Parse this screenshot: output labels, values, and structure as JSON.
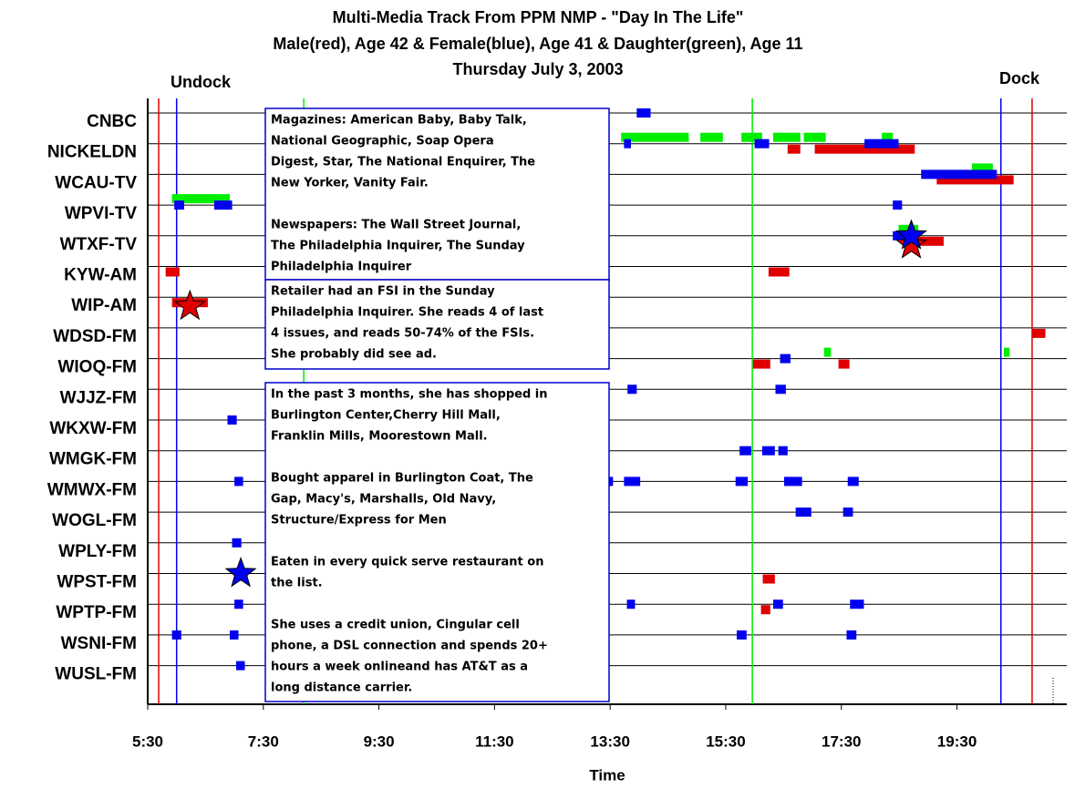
{
  "chart_data": {
    "type": "timeline",
    "title": "Multi-Media Track From PPM NMP - \"Day In The Life\"",
    "subtitle": [
      "Male(red), Age 42 & Female(blue), Age 41 & Daughter(green), Age 11",
      "Thursday July 3, 2003"
    ],
    "xlabel": "Time",
    "categories": [
      "CNBC",
      "NICKELDN",
      "WCAU-TV",
      "WPVI-TV",
      "WTXF-TV",
      "KYW-AM",
      "WIP-AM",
      "WDSD-FM",
      "WIOQ-FM",
      "WJJZ-FM",
      "WKXW-FM",
      "WMGK-FM",
      "WMWX-FM",
      "WOGL-FM",
      "WPLY-FM",
      "WPST-FM",
      "WPTP-FM",
      "WSNI-FM",
      "WUSL-FM"
    ],
    "xlim": [
      5.5,
      21.4
    ],
    "xticks": [
      {
        "value": 5.5,
        "label": "5:30"
      },
      {
        "value": 7.5,
        "label": "7:30"
      },
      {
        "value": 9.5,
        "label": "9:30"
      },
      {
        "value": 11.5,
        "label": "11:30"
      },
      {
        "value": 13.5,
        "label": "13:30"
      },
      {
        "value": 15.5,
        "label": "15:30"
      },
      {
        "value": 17.5,
        "label": "17:30"
      },
      {
        "value": 19.5,
        "label": "19:30"
      }
    ],
    "series": [
      {
        "color": "#e00000",
        "segments": [
          {
            "row": 1,
            "start": 16.57,
            "end": 16.79
          },
          {
            "row": 1,
            "start": 17.04,
            "end": 18.77
          },
          {
            "row": 2,
            "start": 19.15,
            "end": 20.48
          },
          {
            "row": 4,
            "start": 18.68,
            "end": 19.27
          },
          {
            "row": 5,
            "start": 5.81,
            "end": 6.05
          },
          {
            "row": 5,
            "start": 16.24,
            "end": 16.6
          },
          {
            "row": 6,
            "start": 5.92,
            "end": 6.54
          },
          {
            "row": 7,
            "start": 20.8,
            "end": 21.03
          },
          {
            "row": 8,
            "start": 15.97,
            "end": 16.27
          },
          {
            "row": 8,
            "start": 17.45,
            "end": 17.64
          },
          {
            "row": 15,
            "start": 16.14,
            "end": 16.35
          },
          {
            "row": 16,
            "start": 16.11,
            "end": 16.27
          }
        ]
      },
      {
        "color": "#00ee00",
        "segments": [
          {
            "row": 1,
            "start": 13.69,
            "end": 14.86
          },
          {
            "row": 1,
            "start": 15.06,
            "end": 15.45
          },
          {
            "row": 1,
            "start": 15.77,
            "end": 16.13
          },
          {
            "row": 1,
            "start": 16.32,
            "end": 16.79
          },
          {
            "row": 1,
            "start": 16.85,
            "end": 17.23
          },
          {
            "row": 1,
            "start": 18.2,
            "end": 18.39
          },
          {
            "row": 2,
            "start": 19.76,
            "end": 20.12
          },
          {
            "row": 3,
            "start": 5.92,
            "end": 6.92
          },
          {
            "row": 4,
            "start": 18.49,
            "end": 18.83
          },
          {
            "row": 8,
            "start": 17.2,
            "end": 17.32
          },
          {
            "row": 8,
            "start": 20.31,
            "end": 20.41
          }
        ]
      },
      {
        "color": "#0000ee",
        "segments": [
          {
            "row": 0,
            "start": 13.96,
            "end": 14.2
          },
          {
            "row": 1,
            "start": 13.74,
            "end": 13.86
          },
          {
            "row": 1,
            "start": 16.0,
            "end": 16.25
          },
          {
            "row": 1,
            "start": 17.9,
            "end": 18.49
          },
          {
            "row": 2,
            "start": 18.88,
            "end": 20.19
          },
          {
            "row": 3,
            "start": 5.96,
            "end": 6.13
          },
          {
            "row": 3,
            "start": 6.65,
            "end": 6.96
          },
          {
            "row": 3,
            "start": 18.39,
            "end": 18.55
          },
          {
            "row": 4,
            "start": 18.39,
            "end": 18.68
          },
          {
            "row": 8,
            "start": 16.44,
            "end": 16.62
          },
          {
            "row": 9,
            "start": 13.8,
            "end": 13.96
          },
          {
            "row": 9,
            "start": 16.36,
            "end": 16.54
          },
          {
            "row": 10,
            "start": 6.88,
            "end": 7.04
          },
          {
            "row": 11,
            "start": 15.74,
            "end": 15.94
          },
          {
            "row": 11,
            "start": 16.13,
            "end": 16.35
          },
          {
            "row": 11,
            "start": 16.41,
            "end": 16.57
          },
          {
            "row": 12,
            "start": 7.0,
            "end": 7.15
          },
          {
            "row": 12,
            "start": 13.46,
            "end": 13.55
          },
          {
            "row": 12,
            "start": 13.74,
            "end": 14.02
          },
          {
            "row": 12,
            "start": 15.67,
            "end": 15.88
          },
          {
            "row": 12,
            "start": 16.51,
            "end": 16.82
          },
          {
            "row": 12,
            "start": 17.61,
            "end": 17.8
          },
          {
            "row": 13,
            "start": 16.71,
            "end": 16.98
          },
          {
            "row": 13,
            "start": 17.53,
            "end": 17.7
          },
          {
            "row": 14,
            "start": 6.96,
            "end": 7.12
          },
          {
            "row": 16,
            "start": 7.0,
            "end": 7.15
          },
          {
            "row": 16,
            "start": 13.79,
            "end": 13.93
          },
          {
            "row": 16,
            "start": 16.32,
            "end": 16.49
          },
          {
            "row": 16,
            "start": 17.65,
            "end": 17.89
          },
          {
            "row": 17,
            "start": 5.92,
            "end": 6.08
          },
          {
            "row": 17,
            "start": 6.92,
            "end": 7.07
          },
          {
            "row": 17,
            "start": 15.69,
            "end": 15.86
          },
          {
            "row": 17,
            "start": 17.59,
            "end": 17.76
          },
          {
            "row": 18,
            "start": 7.03,
            "end": 7.18
          }
        ]
      }
    ],
    "stars": [
      {
        "row": 6,
        "time": 6.23,
        "color": "#e00000"
      },
      {
        "row": 15,
        "time": 7.11,
        "color": "#0000ee"
      },
      {
        "row": 4,
        "time": 18.71,
        "color": "#e00000"
      },
      {
        "row": 4,
        "time": 18.71,
        "color": "#0000ee"
      }
    ],
    "verticals": [
      {
        "time": 5.69,
        "color": "#e00000"
      },
      {
        "time": 20.8,
        "color": "#e00000"
      },
      {
        "time": 6.0,
        "color": "#0000ee"
      },
      {
        "time": 20.26,
        "color": "#0000ee"
      },
      {
        "time": 8.2,
        "color": "#00ee00"
      },
      {
        "time": 15.96,
        "color": "#00ee00"
      }
    ],
    "undock": "Undock",
    "dock": "Dock",
    "boxes": [
      {
        "paragraphs": [
          [
            "Magazines: American Baby, Baby Talk,",
            "National Geographic, Soap Opera",
            "Digest, Star, The National  Enquirer, The",
            "New Yorker, Vanity Fair."
          ],
          [
            "Newspapers: The Wall Street Journal,",
            "The Philadelphia Inquirer, The Sunday",
            "Philadelphia Inquirer"
          ]
        ]
      },
      {
        "paragraphs": [
          [
            "Retailer had an FSI in the Sunday",
            "Philadelphia Inquirer.  She reads 4 of last",
            "4 issues, and reads 50-74% of the FSIs.",
            "She probably did see ad."
          ]
        ]
      },
      {
        "paragraphs": [
          [
            "In the past 3 months, she has shopped in",
            "Burlington Center,Cherry Hill Mall,",
            "Franklin Mills, Moorestown Mall."
          ],
          [
            "Bought apparel in Burlington Coat, The",
            "Gap, Macy's, Marshalls, Old Navy,",
            "Structure/Express for Men"
          ],
          [
            "Eaten in every quick serve restaurant on",
            "the list."
          ],
          [
            "She uses a credit union, Cingular cell",
            "phone, a DSL connection and spends 20+",
            "hours a week onlineand has AT&T as a",
            "long distance carrier."
          ]
        ]
      }
    ]
  }
}
